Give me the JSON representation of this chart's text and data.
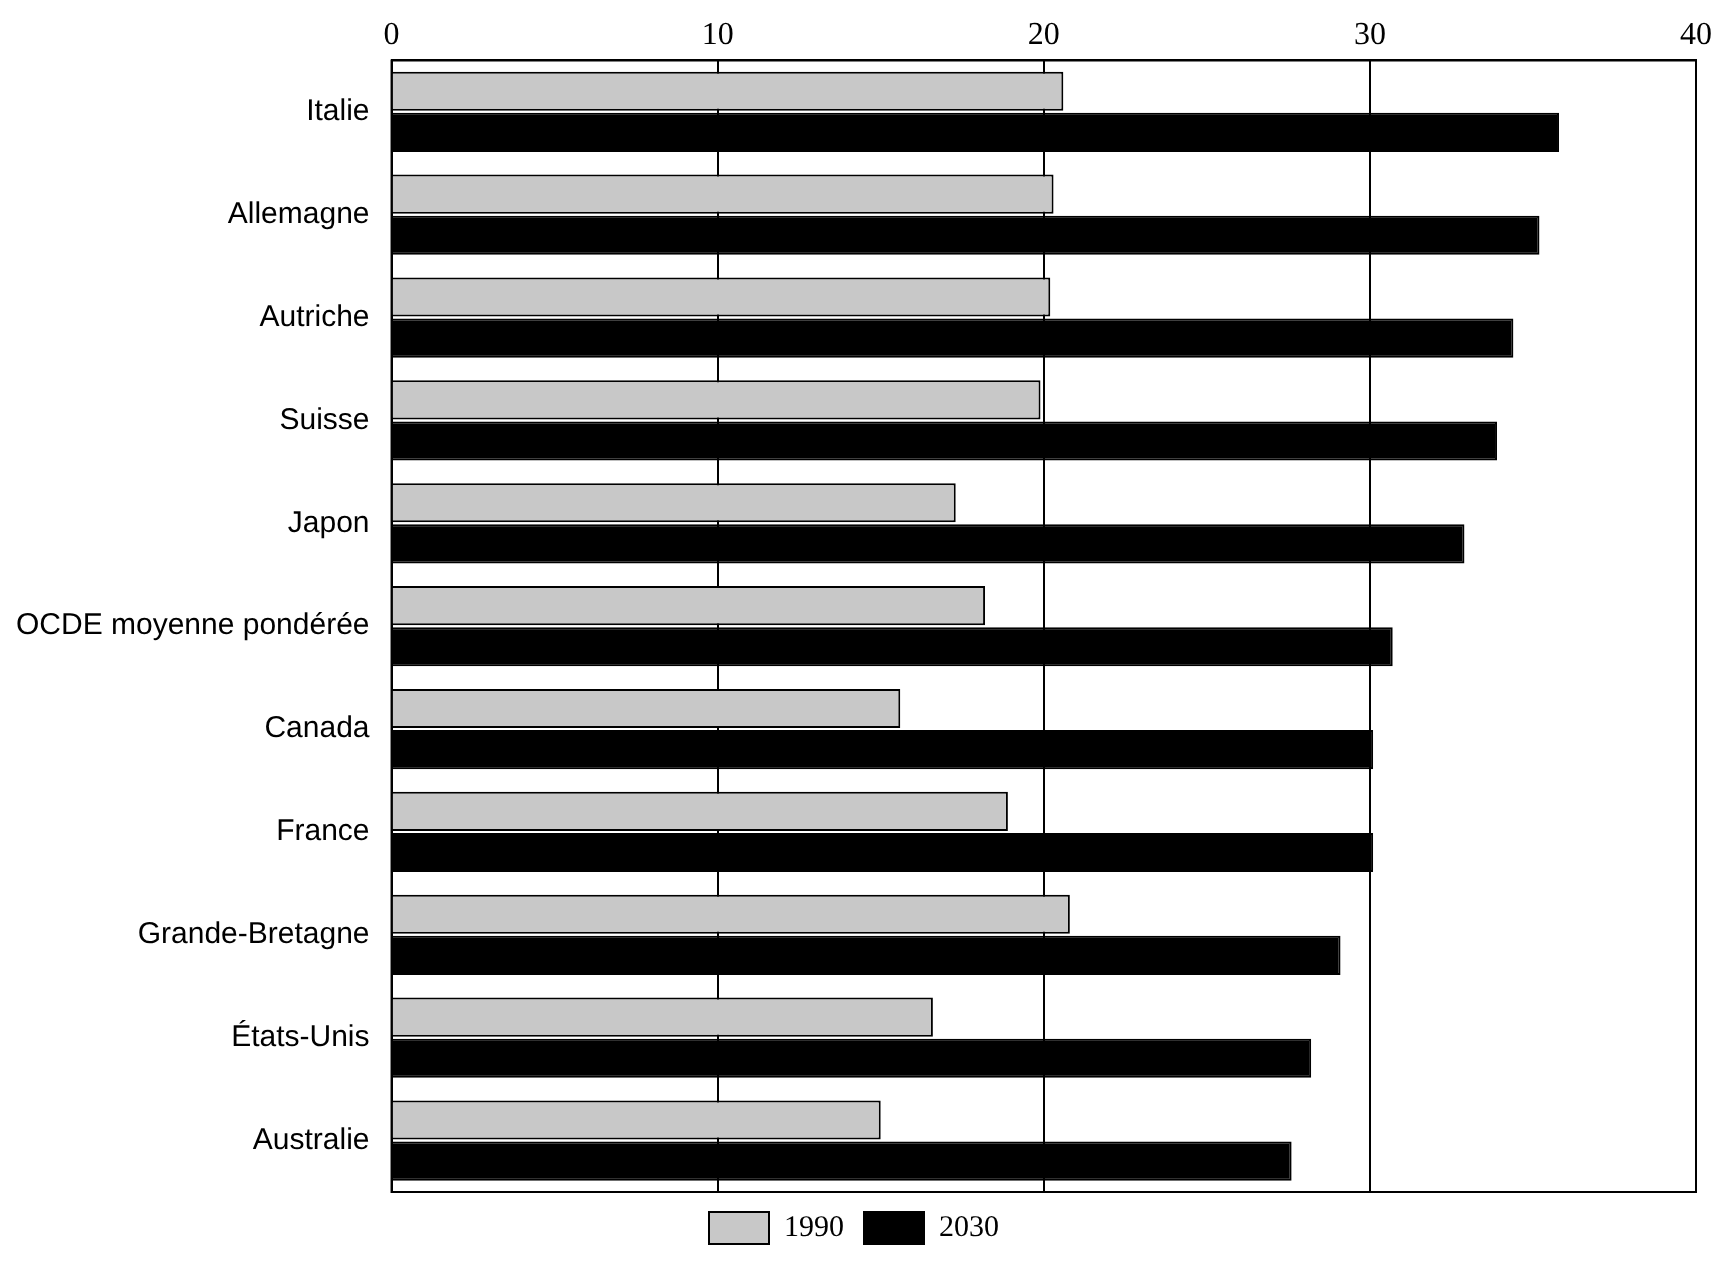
{
  "chart_data": {
    "type": "bar",
    "orientation": "horizontal",
    "categories": [
      "Italie",
      "Allemagne",
      "Autriche",
      "Suisse",
      "Japon",
      "OCDE moyenne pondérée",
      "Canada",
      "France",
      "Grande-Bretagne",
      "États-Unis",
      "Australie"
    ],
    "series": [
      {
        "name": "1990",
        "color": "#c8c8c8",
        "values": [
          20.6,
          20.3,
          20.2,
          19.9,
          17.3,
          18.2,
          15.6,
          18.9,
          20.8,
          16.6,
          15.0
        ]
      },
      {
        "name": "2030",
        "color": "#000000",
        "values": [
          35.8,
          35.2,
          34.4,
          33.9,
          32.9,
          30.7,
          30.1,
          30.1,
          29.1,
          28.2,
          27.6
        ]
      }
    ],
    "xlim": [
      0,
      40
    ],
    "xticks": [
      0,
      10,
      20,
      30,
      40
    ],
    "grid": "x",
    "legend": "bottom"
  }
}
